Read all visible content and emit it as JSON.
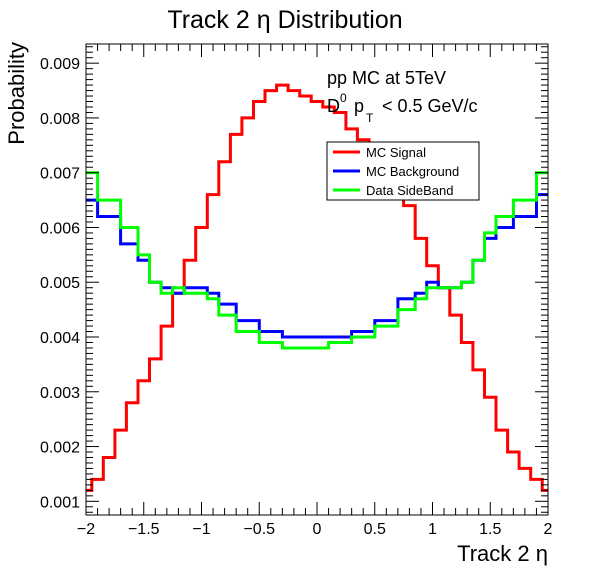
{
  "chart_data": {
    "type": "line",
    "title": "Track 2 η Distribution",
    "xlabel": "Track 2 η",
    "ylabel": "Probability",
    "xlim": [
      -2,
      2
    ],
    "ylim": [
      0.00075,
      0.00935
    ],
    "xticks": [
      "−2",
      "−1.5",
      "−1",
      "−0.5",
      "0",
      "0.5",
      "1",
      "1.5",
      "2"
    ],
    "xtick_values": [
      -2,
      -1.5,
      -1,
      -0.5,
      0,
      0.5,
      1,
      1.5,
      2
    ],
    "yticks": [
      "0.001",
      "0.002",
      "0.003",
      "0.004",
      "0.005",
      "0.006",
      "0.007",
      "0.008",
      "0.009"
    ],
    "ytick_values": [
      0.001,
      0.002,
      0.003,
      0.004,
      0.005,
      0.006,
      0.007,
      0.008,
      0.009
    ],
    "annotations": {
      "line1": "pp MC at 5TeV",
      "line2_main": "D",
      "line2_sup": "0",
      "line2_p": "p",
      "line2_sub": "T",
      "line2_rest": "< 0.5 GeV/c"
    },
    "legend_position": "top-right",
    "series": [
      {
        "name": "MC Signal",
        "color": "#ff0000",
        "x": [
          -2.0,
          -1.9,
          -1.8,
          -1.7,
          -1.6,
          -1.5,
          -1.4,
          -1.3,
          -1.2,
          -1.1,
          -1.0,
          -0.9,
          -0.8,
          -0.7,
          -0.6,
          -0.5,
          -0.4,
          -0.3,
          -0.2,
          -0.1,
          0.0,
          0.1,
          0.2,
          0.3,
          0.4,
          0.5,
          0.6,
          0.7,
          0.8,
          0.9,
          1.0,
          1.1,
          1.2,
          1.3,
          1.4,
          1.5,
          1.6,
          1.7,
          1.8,
          1.9,
          2.0
        ],
        "y": [
          0.0012,
          0.0014,
          0.0018,
          0.0023,
          0.0028,
          0.0032,
          0.0036,
          0.0042,
          0.0048,
          0.0054,
          0.006,
          0.0066,
          0.0072,
          0.0077,
          0.008,
          0.0083,
          0.0085,
          0.0086,
          0.0085,
          0.0084,
          0.0083,
          0.0082,
          0.0081,
          0.0078,
          0.0076,
          0.0073,
          0.0071,
          0.0068,
          0.0064,
          0.0058,
          0.0053,
          0.0049,
          0.0044,
          0.0039,
          0.0034,
          0.0029,
          0.0023,
          0.0019,
          0.0016,
          0.0014,
          0.0012
        ]
      },
      {
        "name": "MC Background",
        "color": "#0000ff",
        "x": [
          -2.0,
          -1.8,
          -1.6,
          -1.5,
          -1.4,
          -1.3,
          -1.2,
          -1.1,
          -1.0,
          -0.9,
          -0.8,
          -0.6,
          -0.4,
          -0.2,
          0.0,
          0.2,
          0.4,
          0.6,
          0.8,
          0.9,
          1.0,
          1.1,
          1.2,
          1.3,
          1.4,
          1.5,
          1.6,
          1.8,
          2.0
        ],
        "y": [
          0.0065,
          0.0062,
          0.0057,
          0.0054,
          0.005,
          0.0049,
          0.0048,
          0.0049,
          0.0049,
          0.0048,
          0.0046,
          0.0043,
          0.0041,
          0.004,
          0.004,
          0.004,
          0.0041,
          0.0043,
          0.0047,
          0.0048,
          0.005,
          0.0049,
          0.0049,
          0.005,
          0.0054,
          0.0058,
          0.006,
          0.0062,
          0.0066
        ]
      },
      {
        "name": "Data SideBand",
        "color": "#00ff00",
        "x": [
          -2.0,
          -1.8,
          -1.6,
          -1.5,
          -1.4,
          -1.3,
          -1.2,
          -1.1,
          -1.0,
          -0.9,
          -0.8,
          -0.6,
          -0.4,
          -0.2,
          0.0,
          0.2,
          0.4,
          0.6,
          0.8,
          0.9,
          1.0,
          1.1,
          1.2,
          1.3,
          1.4,
          1.5,
          1.6,
          1.8,
          2.0
        ],
        "y": [
          0.007,
          0.0065,
          0.006,
          0.0055,
          0.005,
          0.0048,
          0.0049,
          0.0048,
          0.0048,
          0.0047,
          0.0044,
          0.0041,
          0.0039,
          0.0038,
          0.0038,
          0.0039,
          0.004,
          0.0042,
          0.0045,
          0.0047,
          0.0049,
          0.0049,
          0.0049,
          0.005,
          0.0054,
          0.0059,
          0.0062,
          0.0065,
          0.007
        ]
      }
    ]
  }
}
